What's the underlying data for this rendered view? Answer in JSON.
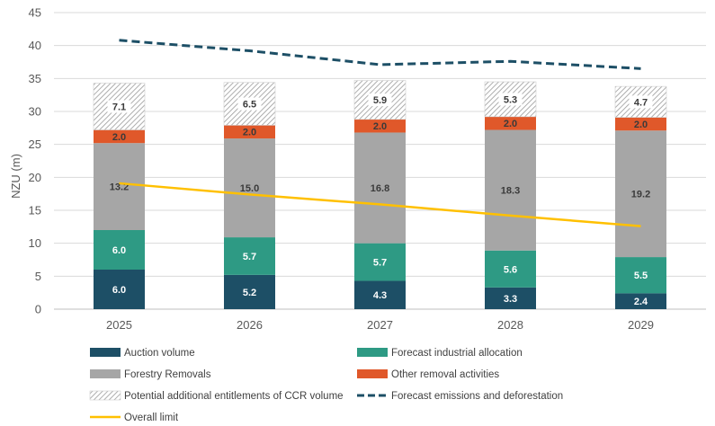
{
  "chart_data": {
    "type": "bar",
    "stacked": true,
    "categories": [
      "2025",
      "2026",
      "2027",
      "2028",
      "2029"
    ],
    "ylabel": "NZU (m)",
    "ylim": [
      0,
      45
    ],
    "yticks": [
      0,
      5,
      10,
      15,
      20,
      25,
      30,
      35,
      40,
      45
    ],
    "grid": true,
    "series": [
      {
        "name": "Auction volume",
        "values": [
          6.0,
          5.2,
          4.3,
          3.3,
          2.4
        ],
        "labels": [
          "6.0",
          "5.2",
          "4.3",
          "3.3",
          "2.4"
        ],
        "color": "#1d4f66",
        "label_color": "#ffffff"
      },
      {
        "name": "Forecast industrial allocation",
        "values": [
          6.0,
          5.7,
          5.7,
          5.6,
          5.5
        ],
        "labels": [
          "6.0",
          "5.7",
          "5.7",
          "5.6",
          "5.5"
        ],
        "color": "#2e9a84",
        "label_color": "#ffffff"
      },
      {
        "name": "Forestry Removals",
        "values": [
          13.2,
          15.0,
          16.8,
          18.3,
          19.2
        ],
        "labels": [
          "13.2",
          "15.0",
          "16.8",
          "18.3",
          "19.2"
        ],
        "color": "#a6a6a6",
        "label_color": "#3a3a3a"
      },
      {
        "name": "Other removal activities",
        "values": [
          2.0,
          2.0,
          2.0,
          2.0,
          2.0
        ],
        "labels": [
          "2.0",
          "2.0",
          "2.0",
          "2.0",
          "2.0"
        ],
        "color": "#e0582a",
        "label_color": "#3a3a3a"
      },
      {
        "name": "Potential additional entitlements of CCR volume",
        "values": [
          7.1,
          6.5,
          5.9,
          5.3,
          4.7
        ],
        "labels": [
          "7.1",
          "6.5",
          "5.9",
          "5.3",
          "4.7"
        ],
        "color": "hatch",
        "label_color": "#3a3a3a"
      }
    ],
    "lines": [
      {
        "name": "Forecast emissions and deforestation",
        "values": [
          40.8,
          39.2,
          37.1,
          37.6,
          36.5
        ],
        "color": "#1d4f66",
        "style": "dashed"
      },
      {
        "name": "Overall limit",
        "values": [
          19.1,
          17.4,
          15.9,
          14.2,
          12.6
        ],
        "color": "#ffc000",
        "style": "solid"
      }
    ],
    "legend": {
      "placement": "bottom",
      "items": [
        {
          "name": "Auction volume",
          "kind": "box",
          "color": "#1d4f66"
        },
        {
          "name": "Forecast industrial allocation",
          "kind": "box",
          "color": "#2e9a84"
        },
        {
          "name": "Forestry Removals",
          "kind": "box",
          "color": "#a6a6a6"
        },
        {
          "name": "Other removal activities",
          "kind": "box",
          "color": "#e0582a"
        },
        {
          "name": "Potential additional entitlements of CCR volume",
          "kind": "hatch",
          "color": "#999999"
        },
        {
          "name": "Forecast emissions and deforestation",
          "kind": "dash",
          "color": "#1d4f66"
        },
        {
          "name": "Overall limit",
          "kind": "line",
          "color": "#ffc000"
        }
      ]
    }
  }
}
